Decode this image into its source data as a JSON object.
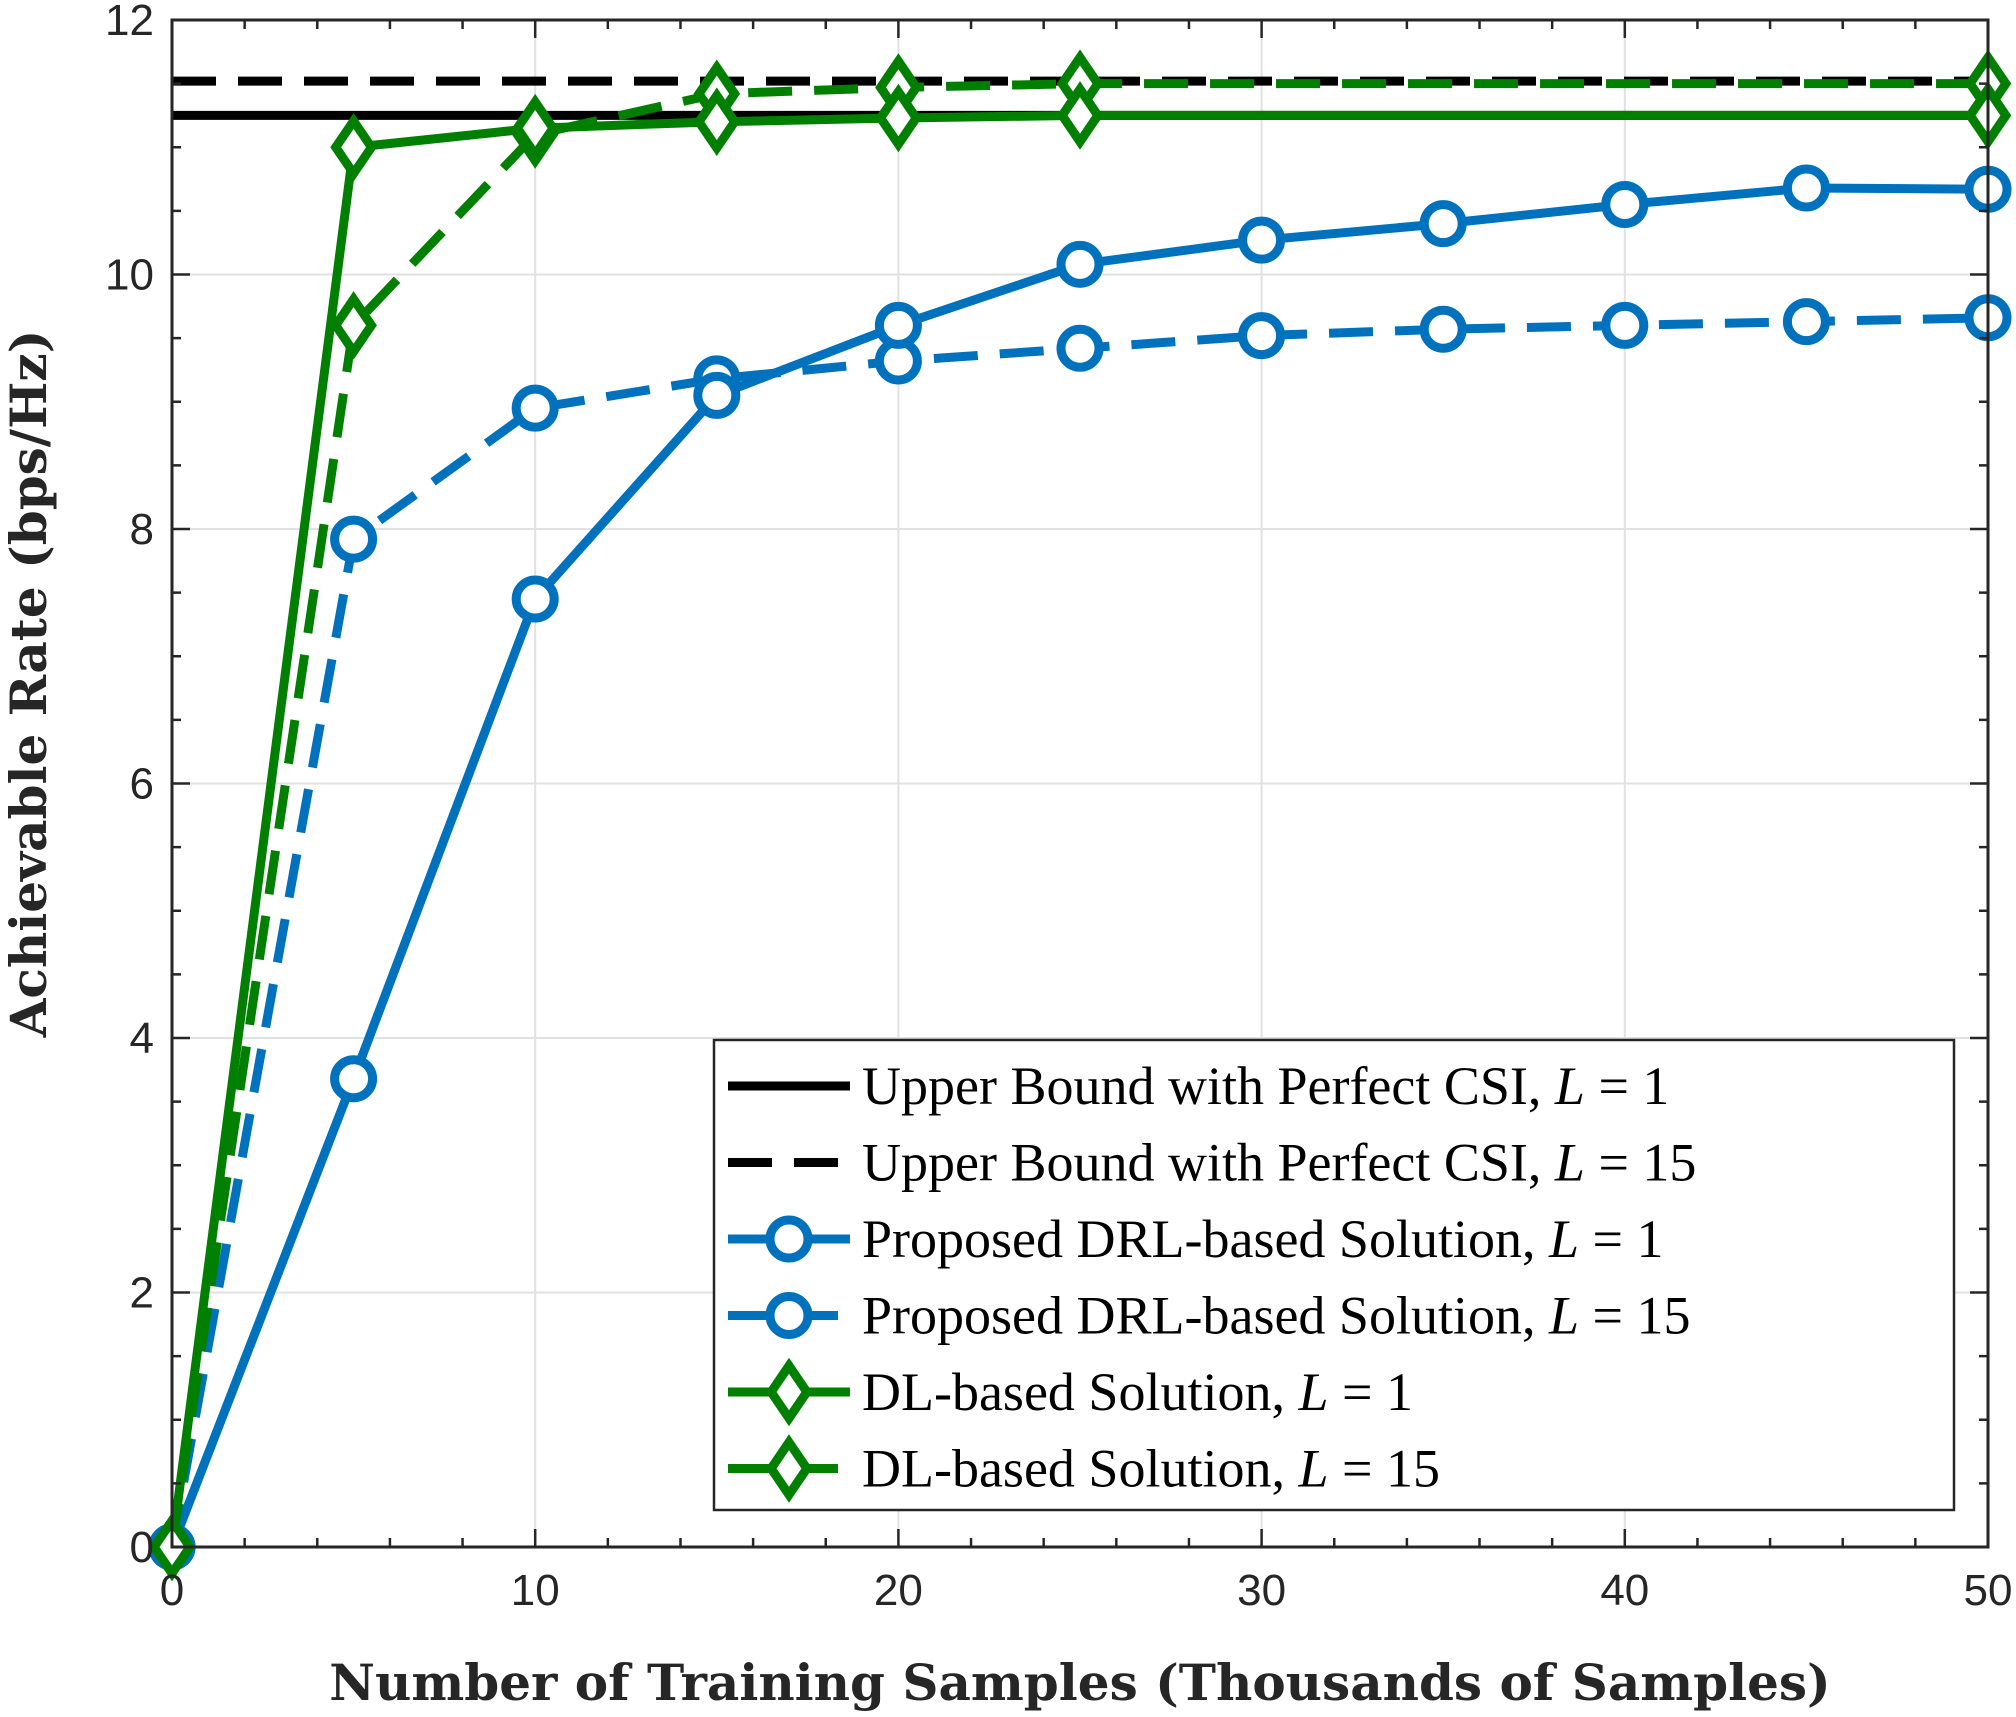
{
  "chart_data": {
    "type": "line",
    "title": "",
    "xlabel": "Number of Training Samples (Thousands of Samples)",
    "ylabel": "Achievable Rate (bps/Hz)",
    "xlim": [
      0,
      50
    ],
    "ylim": [
      0,
      12
    ],
    "xticks": [
      "0",
      "10",
      "20",
      "30",
      "40",
      "50"
    ],
    "yticks": [
      "0",
      "2",
      "4",
      "6",
      "8",
      "10",
      "12"
    ],
    "grid": true,
    "legend_position": "bottom-right",
    "x": [
      0,
      5,
      10,
      15,
      20,
      25,
      30,
      35,
      40,
      45,
      50
    ],
    "series": [
      {
        "name": "Upper Bound with Perfect CSI, L = 1",
        "color": "#000000",
        "dash": "solid",
        "marker": "none",
        "x": [
          0,
          50
        ],
        "values": [
          11.25,
          11.25
        ]
      },
      {
        "name": "Upper Bound with Perfect CSI, L = 15",
        "color": "#000000",
        "dash": "dashed",
        "marker": "none",
        "x": [
          0,
          50
        ],
        "values": [
          11.52,
          11.52
        ]
      },
      {
        "name": "Proposed DRL-based Solution, L = 1",
        "color": "#0072BD",
        "dash": "solid",
        "marker": "circle",
        "x": [
          0,
          5,
          10,
          15,
          20,
          25,
          30,
          35,
          40,
          45,
          50
        ],
        "values": [
          0,
          3.68,
          7.45,
          9.05,
          9.6,
          10.08,
          10.27,
          10.4,
          10.55,
          10.68,
          10.67
        ]
      },
      {
        "name": "Proposed DRL-based Solution, L = 15",
        "color": "#0072BD",
        "dash": "dashed",
        "marker": "circle",
        "x": [
          0,
          5,
          10,
          15,
          20,
          25,
          30,
          35,
          40,
          45,
          50
        ],
        "values": [
          0,
          7.92,
          8.95,
          9.18,
          9.32,
          9.42,
          9.52,
          9.57,
          9.6,
          9.63,
          9.66
        ]
      },
      {
        "name": "DL-based Solution, L = 1",
        "color": "#007F00",
        "dash": "solid",
        "marker": "diamond",
        "x": [
          0,
          5,
          10,
          15,
          20,
          25,
          50
        ],
        "values": [
          0,
          11.0,
          11.15,
          11.2,
          11.23,
          11.25,
          11.25
        ]
      },
      {
        "name": "DL-based Solution, L = 15",
        "color": "#007F00",
        "dash": "dashed",
        "marker": "diamond",
        "x": [
          0,
          5,
          10,
          15,
          20,
          25,
          50
        ],
        "values": [
          0,
          9.6,
          11.1,
          11.42,
          11.47,
          11.5,
          11.5
        ]
      }
    ],
    "legend": [
      {
        "base": "Upper Bound with Perfect CSI, ",
        "var": "L",
        "rest": " = 1"
      },
      {
        "base": "Upper Bound with Perfect CSI, ",
        "var": "L",
        "rest": " = 15"
      },
      {
        "base": "Proposed DRL-based Solution, ",
        "var": "L",
        "rest": " = 1"
      },
      {
        "base": "Proposed DRL-based Solution, ",
        "var": "L",
        "rest": " = 15"
      },
      {
        "base": "DL-based Solution, ",
        "var": "L",
        "rest": " = 1"
      },
      {
        "base": "DL-based Solution, ",
        "var": "L",
        "rest": " = 15"
      }
    ]
  }
}
